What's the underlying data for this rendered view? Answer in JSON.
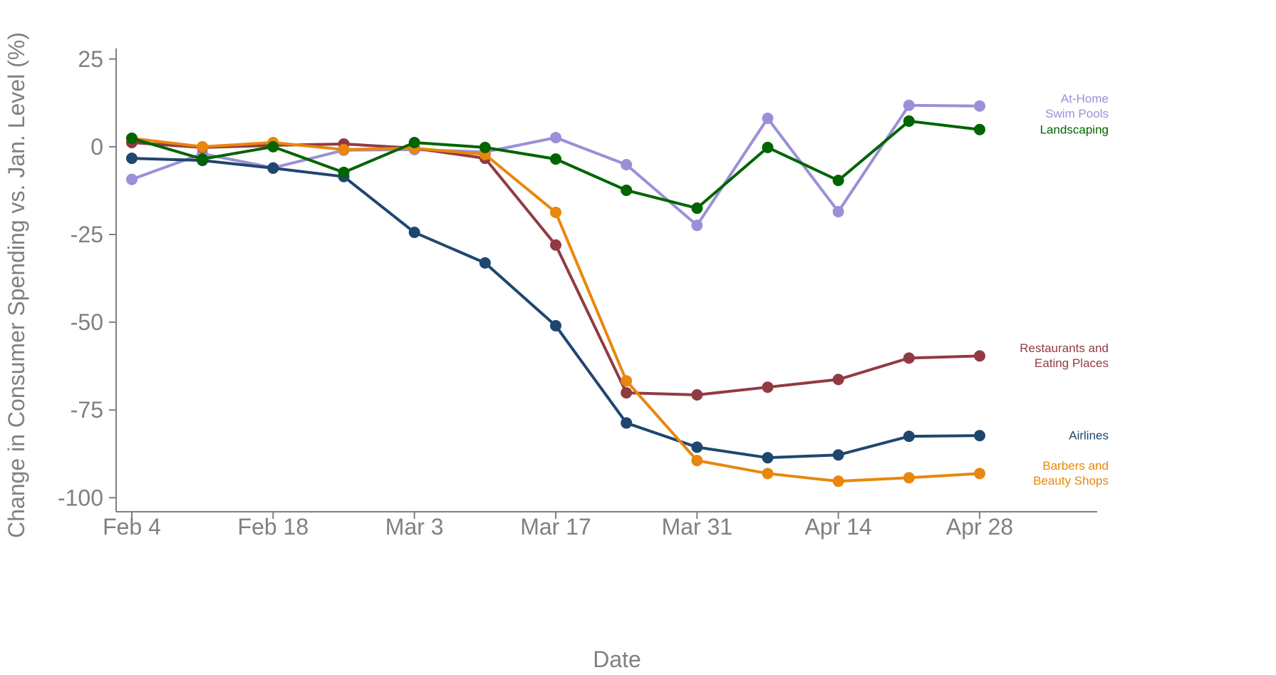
{
  "chart_data": {
    "type": "line",
    "x_label": "Date",
    "y_label": "Change in Consumer Spending vs. Jan. Level (%)",
    "categories": [
      "Feb 4",
      null,
      "Feb 18",
      null,
      "Mar 3",
      null,
      "Mar 17",
      null,
      "Mar 31",
      null,
      "Apr 14",
      null,
      "Apr 28"
    ],
    "ylim": [
      -104,
      28
    ],
    "yticks": [
      25,
      0,
      -25,
      -50,
      -75,
      -100
    ],
    "series": [
      {
        "name": "At-Home\nSwim Pools",
        "color": "#9a90d8",
        "values": [
          -9.3,
          -2,
          -6,
          -1,
          -0.8,
          -1.5,
          2.6,
          -5.1,
          -22.4,
          8.1,
          -18.5,
          11.8,
          11.6
        ]
      },
      {
        "name": "Restaurants and\nEating Places",
        "color": "#923a42",
        "values": [
          1.2,
          -0.2,
          0.4,
          0.8,
          -0.4,
          -3.3,
          -28,
          -70.1,
          -70.7,
          -68.5,
          -66.3,
          -60.2,
          -59.6
        ]
      },
      {
        "name": "Airlines",
        "color": "#1f466f",
        "values": [
          -3.3,
          -3.9,
          -6.1,
          -8.5,
          -24.4,
          -33.1,
          -51,
          -78.7,
          -85.6,
          -88.6,
          -87.8,
          -82.5,
          -82.3
        ]
      },
      {
        "name": "Barbers and\nBeauty Shops",
        "color": "#e8870e",
        "values": [
          2.4,
          0,
          1.2,
          -0.8,
          -0.4,
          -2.2,
          -18.7,
          -66.7,
          -89.4,
          -93.1,
          -95.3,
          -94.3,
          -93.1
        ]
      },
      {
        "name": "Landscaping",
        "color": "#006400",
        "values": [
          2.4,
          -3.5,
          0,
          -7.3,
          1.2,
          -0.2,
          -3.5,
          -12.4,
          -17.5,
          -0.2,
          -9.6,
          7.3,
          4.9
        ]
      }
    ]
  }
}
